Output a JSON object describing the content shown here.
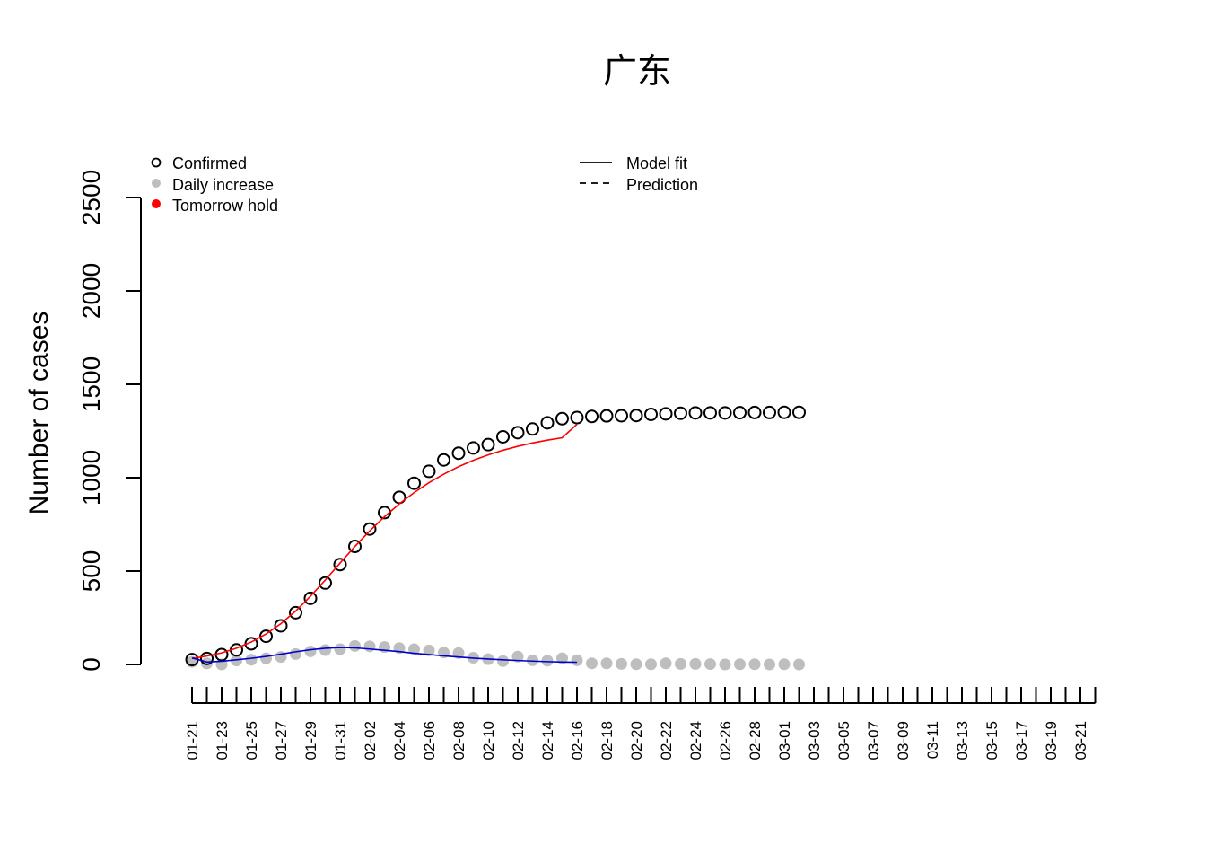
{
  "chart_data": {
    "type": "line",
    "title": "广东",
    "ylabel": "Number of cases",
    "xlabel": "",
    "ylim": [
      0,
      2500
    ],
    "yticks": [
      0,
      500,
      1000,
      1500,
      2000,
      2500
    ],
    "grid": false,
    "x_tick_labels": [
      "01-21",
      "01-23",
      "01-25",
      "01-27",
      "01-29",
      "01-31",
      "02-02",
      "02-04",
      "02-06",
      "02-08",
      "02-10",
      "02-12",
      "02-14",
      "02-16",
      "02-18",
      "02-20",
      "02-22",
      "02-24",
      "02-26",
      "02-28",
      "03-01",
      "03-03",
      "03-05",
      "03-07",
      "03-09",
      "03-11",
      "03-13",
      "03-15",
      "03-17",
      "03-19",
      "03-21"
    ],
    "x_days_total": 61,
    "legend": [
      {
        "label": "Confirmed",
        "marker": "open-circle",
        "color": "#000000"
      },
      {
        "label": "Daily increase",
        "marker": "filled-circle",
        "color": "#bebebe"
      },
      {
        "label": "Tomorrow hold",
        "marker": "filled-circle",
        "color": "#ff0000"
      },
      {
        "label": "Model fit",
        "marker": "solid-line",
        "color": "#000000"
      },
      {
        "label": "Prediction",
        "marker": "dashed-line",
        "color": "#000000"
      }
    ],
    "series": [
      {
        "name": "Confirmed",
        "color": "#000000",
        "values": [
          26,
          32,
          53,
          78,
          111,
          151,
          207,
          277,
          354,
          436,
          535,
          632,
          725,
          813,
          895,
          970,
          1034,
          1095,
          1131,
          1159,
          1177,
          1219,
          1241,
          1261,
          1294,
          1316,
          1322,
          1328,
          1331,
          1332,
          1333,
          1339,
          1342,
          1345,
          1347,
          1347,
          1347,
          1348,
          1349,
          1349,
          1350,
          1350
        ]
      },
      {
        "name": "Daily increase",
        "color": "#bebebe",
        "values": [
          14,
          6,
          0,
          21,
          25,
          33,
          40,
          56,
          70,
          77,
          82,
          99,
          97,
          93,
          88,
          82,
          75,
          64,
          61,
          36,
          28,
          18,
          42,
          22,
          20,
          33,
          22,
          6,
          6,
          3,
          1,
          1,
          6,
          3,
          3,
          2,
          0,
          1,
          1,
          0,
          1,
          0
        ]
      },
      {
        "name": "Model fit (cumulative)",
        "color": "#ff0000",
        "values": [
          32,
          45,
          62,
          87,
          120,
          163,
          218,
          286,
          365,
          452,
          543,
          632,
          715,
          791,
          860,
          920,
          973,
          1019,
          1059,
          1093,
          1122,
          1147,
          1168,
          1186,
          1201,
          1214,
          1286
        ]
      },
      {
        "name": "Model fit (daily)",
        "color": "#0000cd",
        "values": [
          35,
          13,
          17,
          25,
          33,
          43,
          55,
          68,
          79,
          87,
          91,
          89,
          83,
          76,
          69,
          60,
          53,
          46,
          40,
          34,
          29,
          25,
          21,
          18,
          15,
          13,
          12
        ]
      }
    ]
  }
}
